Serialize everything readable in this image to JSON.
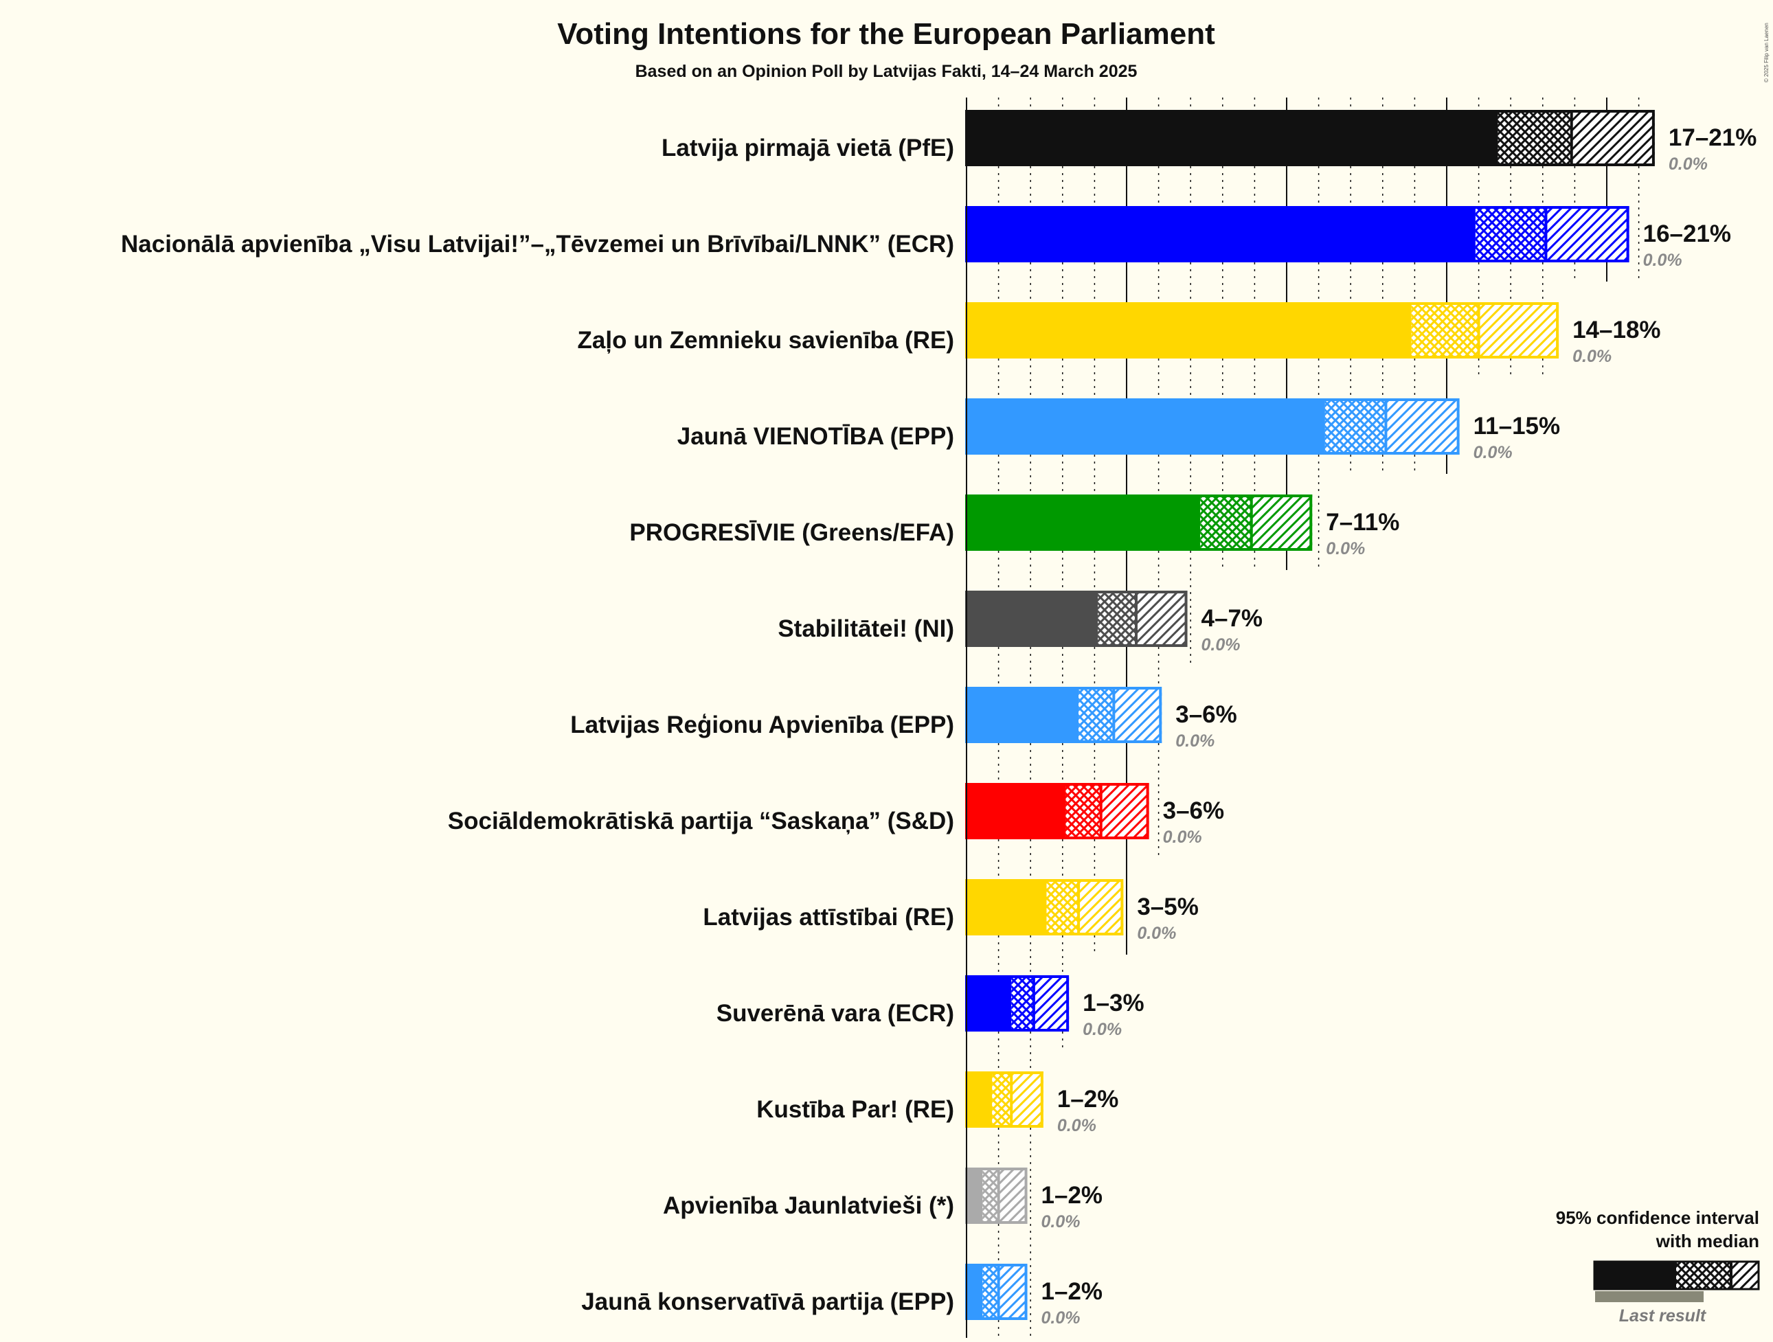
{
  "chart_data": {
    "type": "bar",
    "title": "Voting Intentions for the European Parliament",
    "subtitle": "Based on an Opinion Poll by Latvijas Fakti, 14–24 March 2025",
    "copyright": "© 2025 Filip van Laenen",
    "xlim": [
      0,
      22
    ],
    "series": [
      {
        "name": "Latvija pirmajā vietā (PfE)",
        "low": 16.6,
        "median": 18.9,
        "high": 21.5,
        "range_label": "17–21%",
        "last_result": "0.0%",
        "color": "#111111"
      },
      {
        "name": "Nacionālā apvienība „Visu Latvijai!”–„Tēvzemei un Brīvībai/LNNK” (ECR)",
        "low": 15.9,
        "median": 18.1,
        "high": 20.7,
        "range_label": "16–21%",
        "last_result": "0.0%",
        "color": "#0000ff"
      },
      {
        "name": "Zaļo un Zemnieku savienība (RE)",
        "low": 13.9,
        "median": 16.0,
        "high": 18.5,
        "range_label": "14–18%",
        "last_result": "0.0%",
        "color": "#ffd700"
      },
      {
        "name": "Jaunā VIENOTĪBA (EPP)",
        "low": 11.2,
        "median": 13.1,
        "high": 15.4,
        "range_label": "11–15%",
        "last_result": "0.0%",
        "color": "#3399ff"
      },
      {
        "name": "PROGRESĪVIE (Greens/EFA)",
        "low": 7.3,
        "median": 8.9,
        "high": 10.8,
        "range_label": "7–11%",
        "last_result": "0.0%",
        "color": "#009900"
      },
      {
        "name": "Stabilitātei! (NI)",
        "low": 4.1,
        "median": 5.3,
        "high": 6.9,
        "range_label": "4–7%",
        "last_result": "0.0%",
        "color": "#4d4d4d"
      },
      {
        "name": "Latvijas Reģionu Apvienība (EPP)",
        "low": 3.5,
        "median": 4.6,
        "high": 6.1,
        "range_label": "3–6%",
        "last_result": "0.0%",
        "color": "#3399ff"
      },
      {
        "name": "Sociāldemokrātiskā partija “Saskaņa” (S&D)",
        "low": 3.1,
        "median": 4.2,
        "high": 5.7,
        "range_label": "3–6%",
        "last_result": "0.0%",
        "color": "#ff0000"
      },
      {
        "name": "Latvijas attīstībai (RE)",
        "low": 2.5,
        "median": 3.5,
        "high": 4.9,
        "range_label": "3–5%",
        "last_result": "0.0%",
        "color": "#ffd700"
      },
      {
        "name": "Suverēnā vara (ECR)",
        "low": 1.4,
        "median": 2.1,
        "high": 3.2,
        "range_label": "1–3%",
        "last_result": "0.0%",
        "color": "#0000ff"
      },
      {
        "name": "Kustība Par! (RE)",
        "low": 0.8,
        "median": 1.4,
        "high": 2.4,
        "range_label": "1–2%",
        "last_result": "0.0%",
        "color": "#ffd700"
      },
      {
        "name": "Apvienība Jaunlatvieši (*)",
        "low": 0.5,
        "median": 1.0,
        "high": 1.9,
        "range_label": "1–2%",
        "last_result": "0.0%",
        "color": "#aaaaaa"
      },
      {
        "name": "Jaunā konservatīvā partija (EPP)",
        "low": 0.5,
        "median": 1.0,
        "high": 1.9,
        "range_label": "1–2%",
        "last_result": "0.0%",
        "color": "#3399ff"
      }
    ],
    "legend": {
      "title_line1": "95% confidence interval",
      "title_line2": "with median",
      "last_result": "Last result",
      "position": "bottom-right"
    }
  }
}
